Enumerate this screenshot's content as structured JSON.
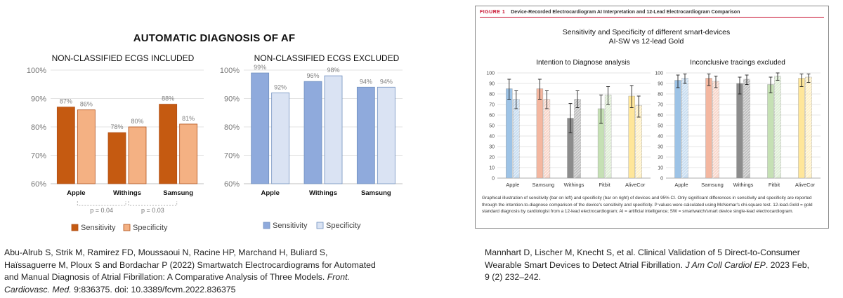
{
  "left_figure": {
    "title": "AUTOMATIC DIAGNOSIS OF AF",
    "citation": {
      "authors_line1": "Abu-Alrub S, Strik M, Ramirez FD, Moussaoui N, Racine HP, Marchand H, Buliard S,",
      "authors_line2": "Haïssaguerre M, Ploux S and Bordachar P (2022) Smartwatch Electrocardiograms for Automated",
      "authors_line3": "and Manual Diagnosis of Atrial Fibrillation: A Comparative  Analysis of Three Models.",
      "journal": "Front. Cardiovasc. Med.",
      "journal_a": "Front.",
      "journal_b": "Cardiovasc.  Med.",
      "rest": "9:836375. doi: 10.3389/fcvm.2022.836375"
    }
  },
  "right_figure": {
    "figure_label": "FIGURE 1",
    "header_title": "Device-Recorded Electrocardiogram AI Interpretation and 12-Lead Electrocardiogram Comparison",
    "supertitle_line1": "Sensitivity and Specificity of different smart-devices",
    "supertitle_line2": "AI-SW vs 12-lead Gold",
    "caption": "Graphical illustration of sensitivity (bar on left) and specificity (bar on right) of devices and 95% CI. Only significant differences in sensitivity and specificity are reported through the intention-to-diagnose comparison of the device's sensitivity and specificity. P values were calculated using McNemar's chi-square test. 12-lead-Gold = gold standard diagnosis by cardiologist from a 12-lead electrocardiogram; AI = artificial intelligence; SW = smartwatch/smart device single-lead electrocardiogram.",
    "citation": {
      "line1": "Mannhart D, Lischer M, Knecht S, et al. Clinical Validation of 5 Direct-to-Consumer",
      "line2_pre": "Wearable Smart Devices to Detect Atrial Fibrillation.",
      "journal": "J Am Coll Cardiol EP",
      "line2_post": ". 2023 Feb,",
      "line3": "9 (2) 232–242."
    }
  },
  "chart_data": [
    {
      "type": "bar",
      "title": "NON-CLASSIFIED ECGS INCLUDED",
      "categories": [
        "Apple",
        "Withings",
        "Samsung"
      ],
      "series": [
        {
          "name": "Sensitivity",
          "values": [
            87,
            78,
            88
          ],
          "labels": [
            "87%",
            "78%",
            "88%"
          ],
          "color": "#c55a11"
        },
        {
          "name": "Specificity",
          "values": [
            86,
            80,
            81
          ],
          "labels": [
            "86%",
            "80%",
            "81%"
          ],
          "color": "#f4b183"
        }
      ],
      "ylim": [
        60,
        100
      ],
      "yticks": [
        "60%",
        "70%",
        "80%",
        "90%",
        "100%"
      ],
      "annotations": [
        "p = 0.04",
        "p = 0.03"
      ],
      "legend": [
        "Sensitivity",
        "Specificity"
      ]
    },
    {
      "type": "bar",
      "title": "NON-CLASSIFIED ECGS EXCLUDED",
      "categories": [
        "Apple",
        "Withings",
        "Samsung"
      ],
      "series": [
        {
          "name": "Sensitivity",
          "values": [
            99,
            96,
            94
          ],
          "labels": [
            "99%",
            "96%",
            "94%"
          ],
          "color": "#8faadc"
        },
        {
          "name": "Specificity",
          "values": [
            92,
            98,
            94
          ],
          "labels": [
            "92%",
            "98%",
            "94%"
          ],
          "color": "#dae3f3"
        }
      ],
      "ylim": [
        60,
        100
      ],
      "yticks": [
        "60%",
        "70%",
        "80%",
        "90%",
        "100%"
      ],
      "legend": [
        "Sensitivity",
        "Specificity"
      ]
    },
    {
      "type": "bar",
      "title": "Intention to Diagnose analysis",
      "categories": [
        "Apple",
        "Samsung",
        "Withings",
        "Fitbit",
        "AliveCor"
      ],
      "series": [
        {
          "name": "Sensitivity",
          "values": [
            85,
            85,
            57,
            66,
            78
          ],
          "ci_low": [
            75,
            75,
            43,
            52,
            67
          ],
          "ci_high": [
            94,
            94,
            71,
            79,
            88
          ]
        },
        {
          "name": "Specificity",
          "values": [
            75,
            75,
            75,
            79,
            69
          ],
          "ci_low": [
            66,
            66,
            67,
            70,
            58
          ],
          "ci_high": [
            83,
            83,
            83,
            87,
            78
          ]
        }
      ],
      "colors": [
        "#9dc3e6",
        "#f4b7a0",
        "#8c8c8c",
        "#c5e0b4",
        "#ffe699"
      ],
      "ylim": [
        0,
        100
      ],
      "yticks": [
        "0",
        "10",
        "20",
        "30",
        "40",
        "50",
        "60",
        "70",
        "80",
        "90",
        "100"
      ]
    },
    {
      "type": "bar",
      "title": "Inconclusive tracings excluded",
      "categories": [
        "Apple",
        "Samsung",
        "Withings",
        "Fitbit",
        "AliveCor"
      ],
      "series": [
        {
          "name": "Sensitivity",
          "values": [
            93,
            95,
            90,
            89,
            95
          ],
          "ci_low": [
            86,
            88,
            80,
            81,
            87
          ],
          "ci_high": [
            98,
            99,
            96,
            96,
            99
          ]
        },
        {
          "name": "Specificity",
          "values": [
            95,
            92,
            94,
            97,
            96
          ],
          "ci_low": [
            90,
            86,
            89,
            93,
            91
          ],
          "ci_high": [
            99,
            97,
            98,
            100,
            99
          ]
        }
      ],
      "colors": [
        "#9dc3e6",
        "#f4b7a0",
        "#8c8c8c",
        "#c5e0b4",
        "#ffe699"
      ],
      "ylim": [
        0,
        100
      ],
      "yticks": [
        "0",
        "10",
        "20",
        "30",
        "40",
        "50",
        "60",
        "70",
        "80",
        "90",
        "100"
      ]
    }
  ]
}
